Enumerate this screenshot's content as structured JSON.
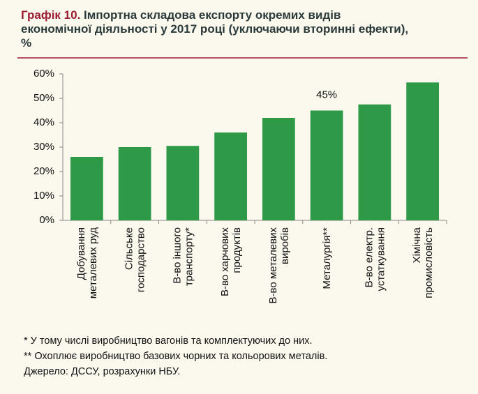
{
  "chart_data": {
    "type": "bar",
    "title_label": "Графік 10.",
    "title": "Імпортна складова експорту окремих видів економічної діяльності у 2017 році (уключаючи вторинні ефекти), %",
    "categories": [
      [
        "Добування",
        "металевих руд"
      ],
      [
        "Сільське",
        "господарство"
      ],
      [
        "В-во іншого",
        "транспорту*"
      ],
      [
        "В-во харчових",
        "продуктів"
      ],
      [
        "В-во металевих",
        "виробів"
      ],
      [
        "Металургія**"
      ],
      [
        "В-во електр.",
        "устаткування"
      ],
      [
        "Хімічна",
        "промисловість"
      ]
    ],
    "values": [
      26,
      30,
      30.5,
      36,
      42,
      45,
      47.5,
      56.5
    ],
    "value_labels": [
      null,
      null,
      null,
      null,
      null,
      "45%",
      null,
      null
    ],
    "color": "#2e9a47",
    "ylim": [
      0,
      60
    ],
    "yticks": [
      {
        "value": 0,
        "label": "0%"
      },
      {
        "value": 10,
        "label": "10%"
      },
      {
        "value": 20,
        "label": "20%"
      },
      {
        "value": 30,
        "label": "30%"
      },
      {
        "value": 40,
        "label": "40%"
      },
      {
        "value": 50,
        "label": "50%"
      },
      {
        "value": 60,
        "label": "60%"
      }
    ],
    "notes": [
      "* У тому числі виробництво вагонів та комплектуючих до них.",
      "** Охоплює виробництво базових чорних та кольорових металів.",
      "Джерело: ДССУ, розрахунки НБУ."
    ]
  }
}
